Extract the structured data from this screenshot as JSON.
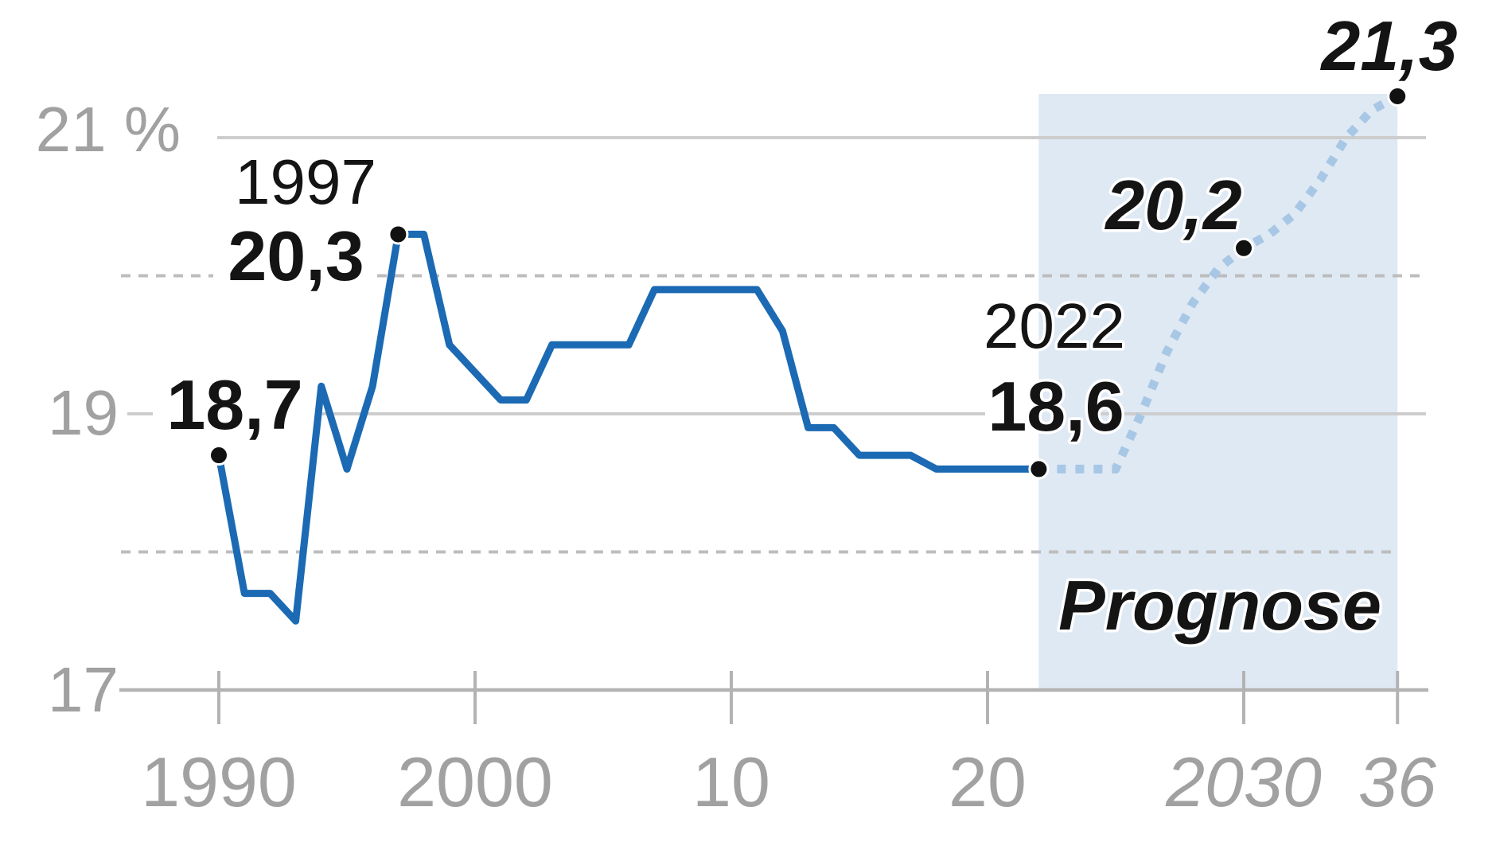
{
  "chart_data": {
    "type": "line",
    "unit": "%",
    "y_axis": {
      "min": 17,
      "max": 21.5,
      "ticks": [
        {
          "value": 21,
          "label": "21 %",
          "line": "solid"
        },
        {
          "value": 20,
          "label": "",
          "line": "dashed"
        },
        {
          "value": 19,
          "label": "19",
          "line": "solid"
        },
        {
          "value": 18,
          "label": "",
          "line": "dashed"
        },
        {
          "value": 17,
          "label": "17",
          "line": "axis"
        }
      ]
    },
    "x_axis": {
      "ticks": [
        {
          "year": 1990,
          "label": "1990",
          "italic": false
        },
        {
          "year": 2000,
          "label": "2000",
          "italic": false
        },
        {
          "year": 2010,
          "label": "10",
          "italic": false
        },
        {
          "year": 2020,
          "label": "20",
          "italic": false
        },
        {
          "year": 2030,
          "label": "2030",
          "italic": true
        },
        {
          "year": 2036,
          "label": "36",
          "italic": true
        }
      ]
    },
    "series": [
      {
        "name": "historical",
        "style": "solid",
        "points": [
          [
            1990,
            18.7
          ],
          [
            1991,
            17.7
          ],
          [
            1992,
            17.7
          ],
          [
            1993,
            17.5
          ],
          [
            1994,
            19.2
          ],
          [
            1995,
            18.6
          ],
          [
            1996,
            19.2
          ],
          [
            1997,
            20.3
          ],
          [
            1998,
            20.3
          ],
          [
            1999,
            19.5
          ],
          [
            2000,
            19.3
          ],
          [
            2001,
            19.1
          ],
          [
            2002,
            19.1
          ],
          [
            2003,
            19.5
          ],
          [
            2004,
            19.5
          ],
          [
            2005,
            19.5
          ],
          [
            2006,
            19.5
          ],
          [
            2007,
            19.9
          ],
          [
            2008,
            19.9
          ],
          [
            2009,
            19.9
          ],
          [
            2010,
            19.9
          ],
          [
            2011,
            19.9
          ],
          [
            2012,
            19.6
          ],
          [
            2013,
            18.9
          ],
          [
            2014,
            18.9
          ],
          [
            2015,
            18.7
          ],
          [
            2016,
            18.7
          ],
          [
            2017,
            18.7
          ],
          [
            2018,
            18.6
          ],
          [
            2019,
            18.6
          ],
          [
            2020,
            18.6
          ],
          [
            2021,
            18.6
          ],
          [
            2022,
            18.6
          ]
        ]
      },
      {
        "name": "forecast",
        "style": "dotted",
        "points": [
          [
            2022,
            18.6
          ],
          [
            2023,
            18.6
          ],
          [
            2024,
            18.6
          ],
          [
            2025,
            18.6
          ],
          [
            2026,
            19.0
          ],
          [
            2027,
            19.45
          ],
          [
            2028,
            19.8
          ],
          [
            2029,
            20.05
          ],
          [
            2030,
            20.2
          ],
          [
            2031,
            20.3
          ],
          [
            2032,
            20.45
          ],
          [
            2033,
            20.7
          ],
          [
            2034,
            21.0
          ],
          [
            2035,
            21.2
          ],
          [
            2036,
            21.3
          ]
        ]
      }
    ],
    "markers": [
      [
        1990,
        18.7
      ],
      [
        1997,
        20.3
      ],
      [
        2022,
        18.6
      ],
      [
        2030,
        20.2
      ],
      [
        2036,
        21.3
      ]
    ],
    "annotations": {
      "y1997": "1997",
      "v1997": "20,3",
      "v1990": "18,7",
      "y2022": "2022",
      "v2022": "18,6",
      "v2030": "20,2",
      "v2036": "21,3"
    },
    "forecast_band": {
      "label": "Prognose",
      "start_year": 2022,
      "end_year": 2036
    },
    "colors": {
      "line": "#1b6ab3",
      "forecast": "#a7c7e5",
      "band": "#dfe9f4",
      "grid_solid": "#cdcdcd",
      "grid_dashed": "#bdbdbd",
      "axis": "#b3b3b3",
      "marker": "#111111",
      "text_dark": "#141414",
      "text_gray": "#a1a1a1"
    }
  }
}
